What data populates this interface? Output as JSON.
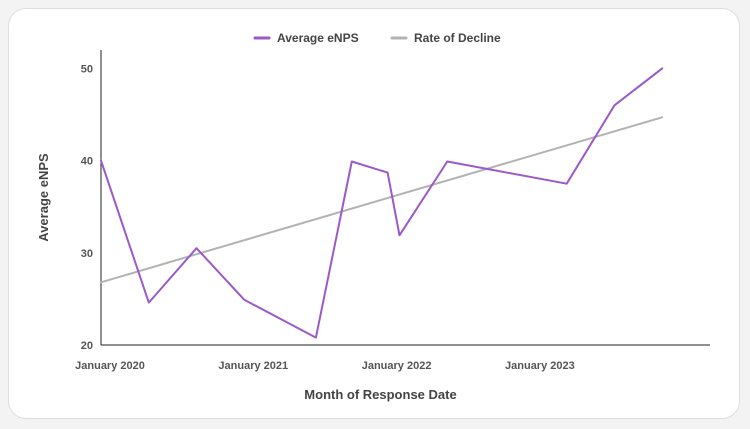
{
  "chart_data": {
    "type": "line",
    "xlabel": "Month of Response Date",
    "ylabel": "Average eNPS",
    "ylim": [
      20,
      52
    ],
    "yticks": [
      "20",
      "30",
      "40",
      "50"
    ],
    "xlim": [
      "2020-01",
      "2024-04"
    ],
    "xticks": [
      {
        "label": "January 2020",
        "date": "2020-01"
      },
      {
        "label": "January 2021",
        "date": "2021-01"
      },
      {
        "label": "January 2022",
        "date": "2022-01"
      },
      {
        "label": "January 2023",
        "date": "2023-01"
      }
    ],
    "legend_position": "top-center",
    "grid": false,
    "series": [
      {
        "name": "Average eNPS",
        "color": "#9b59c9",
        "points": [
          {
            "x": "2020-01",
            "y": 40.0
          },
          {
            "x": "2020-05",
            "y": 24.6
          },
          {
            "x": "2020-09",
            "y": 30.5
          },
          {
            "x": "2021-01",
            "y": 24.9
          },
          {
            "x": "2021-07",
            "y": 20.8
          },
          {
            "x": "2021-10",
            "y": 39.9
          },
          {
            "x": "2022-01",
            "y": 38.7
          },
          {
            "x": "2022-02",
            "y": 31.9
          },
          {
            "x": "2022-06",
            "y": 39.9
          },
          {
            "x": "2023-04",
            "y": 37.5
          },
          {
            "x": "2023-08",
            "y": 46.0
          },
          {
            "x": "2023-12",
            "y": 50.0
          }
        ]
      },
      {
        "name": "Rate of Decline",
        "color": "#b3b3b3",
        "points": [
          {
            "x": "2020-01",
            "y": 26.8
          },
          {
            "x": "2023-12",
            "y": 44.7
          }
        ]
      }
    ]
  }
}
